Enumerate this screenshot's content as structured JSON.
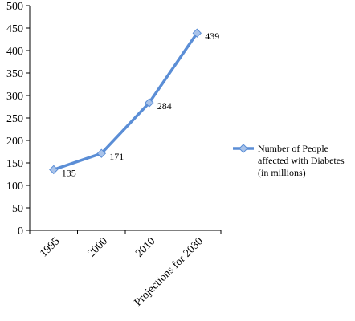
{
  "chart_data": {
    "type": "line",
    "categories": [
      "1995",
      "2000",
      "2010",
      "Projections for 2030"
    ],
    "series": [
      {
        "name": "Number of People affected with Diabetes (in millions)",
        "name_lines": [
          "Number of People",
          "affected with Diabetes",
          "(in millions)"
        ],
        "values": [
          135,
          171,
          284,
          439
        ],
        "color": "#5b8ed6",
        "marker_color": "#a9c3ea"
      }
    ],
    "data_labels": [
      "135",
      "171",
      "284",
      "439"
    ],
    "y_ticks": [
      "0",
      "50",
      "100",
      "150",
      "200",
      "250",
      "300",
      "350",
      "400",
      "450",
      "500"
    ],
    "ylim": [
      0,
      500
    ],
    "title": "",
    "xlabel": "",
    "ylabel": "",
    "grid": false,
    "legend_position": "right"
  }
}
